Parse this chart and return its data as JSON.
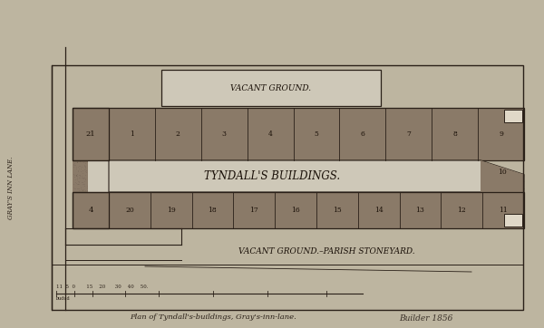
{
  "bg_color": "#bdb5a0",
  "border_color": "#2a2018",
  "hatch_fill": "#8a7a68",
  "central_fill": "#cec8b8",
  "title": "Plan of Tyndall's-buildings, Gray's-inn-lane.",
  "main_label": "TYNDALL'S BUILDINGS.",
  "vacant_top": "VACANT GROUND.",
  "vacant_bottom": "VACANT GROUND.–PARISH STONEYARD.",
  "street_label": "GRAY'S INN LANE.",
  "top_numbers": [
    "1",
    "2",
    "3",
    "4",
    "5",
    "6",
    "7",
    "8",
    "9"
  ],
  "bottom_numbers": [
    "20",
    "19",
    "18",
    "17",
    "16",
    "15",
    "14",
    "13",
    "12",
    "11"
  ],
  "left_top_num": "21",
  "left_bottom_num": "4",
  "right_top_num": "10",
  "scale_label": "11  5  0       15    20      30    40    50.",
  "scale_sublabel": "budud",
  "handwritten": "Builder 1856"
}
